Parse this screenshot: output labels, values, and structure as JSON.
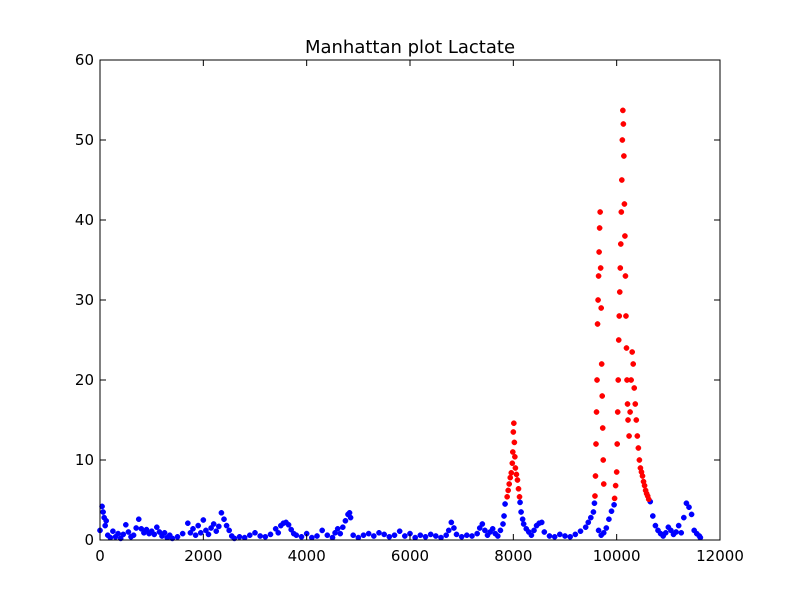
{
  "chart_data": {
    "type": "scatter",
    "title": "Manhattan plot Lactate",
    "xlabel": "",
    "ylabel": "",
    "xlim": [
      0,
      12000
    ],
    "ylim": [
      0,
      60
    ],
    "x_ticks": [
      "0",
      "2000",
      "4000",
      "6000",
      "8000",
      "10000",
      "12000"
    ],
    "y_ticks": [
      "0",
      "10",
      "20",
      "30",
      "40",
      "50",
      "60"
    ],
    "grid": false,
    "legend": "none",
    "threshold": 5,
    "colors": {
      "below_threshold": "#0000ff",
      "above_threshold": "#ff0000"
    },
    "series": [
      {
        "points": [
          [
            0,
            1.2
          ],
          [
            40,
            4.2
          ],
          [
            60,
            3.5
          ],
          [
            80,
            2.8
          ],
          [
            100,
            1.8
          ],
          [
            120,
            2.4
          ],
          [
            150,
            0.6
          ],
          [
            200,
            0.3
          ],
          [
            250,
            1.1
          ],
          [
            300,
            0.4
          ],
          [
            350,
            0.8
          ],
          [
            400,
            0.2
          ],
          [
            450,
            0.7
          ],
          [
            500,
            1.9
          ],
          [
            550,
            1.0
          ],
          [
            600,
            0.4
          ],
          [
            650,
            0.6
          ],
          [
            700,
            1.5
          ],
          [
            750,
            2.6
          ],
          [
            800,
            1.4
          ],
          [
            850,
            0.9
          ],
          [
            900,
            1.3
          ],
          [
            950,
            0.8
          ],
          [
            1000,
            1.1
          ],
          [
            1050,
            0.7
          ],
          [
            1100,
            1.6
          ],
          [
            1150,
            1.0
          ],
          [
            1200,
            0.5
          ],
          [
            1250,
            0.9
          ],
          [
            1300,
            0.3
          ],
          [
            1350,
            0.6
          ],
          [
            1400,
            0.2
          ],
          [
            1500,
            0.4
          ],
          [
            1600,
            0.8
          ],
          [
            1700,
            2.1
          ],
          [
            1750,
            0.9
          ],
          [
            1800,
            1.4
          ],
          [
            1850,
            0.6
          ],
          [
            1900,
            1.8
          ],
          [
            1950,
            0.9
          ],
          [
            2000,
            2.5
          ],
          [
            2050,
            1.2
          ],
          [
            2100,
            0.7
          ],
          [
            2150,
            1.5
          ],
          [
            2200,
            2.0
          ],
          [
            2250,
            1.1
          ],
          [
            2300,
            1.7
          ],
          [
            2350,
            3.4
          ],
          [
            2400,
            2.6
          ],
          [
            2450,
            1.8
          ],
          [
            2500,
            1.2
          ],
          [
            2550,
            0.5
          ],
          [
            2600,
            0.2
          ],
          [
            2700,
            0.4
          ],
          [
            2800,
            0.3
          ],
          [
            2900,
            0.6
          ],
          [
            3000,
            0.9
          ],
          [
            3100,
            0.5
          ],
          [
            3200,
            0.4
          ],
          [
            3300,
            0.7
          ],
          [
            3400,
            1.4
          ],
          [
            3450,
            0.9
          ],
          [
            3500,
            1.8
          ],
          [
            3550,
            2.1
          ],
          [
            3600,
            2.2
          ],
          [
            3650,
            1.9
          ],
          [
            3700,
            1.3
          ],
          [
            3750,
            0.8
          ],
          [
            3800,
            0.6
          ],
          [
            3900,
            0.4
          ],
          [
            4000,
            0.8
          ],
          [
            4100,
            0.3
          ],
          [
            4200,
            0.5
          ],
          [
            4300,
            1.2
          ],
          [
            4400,
            0.6
          ],
          [
            4500,
            0.3
          ],
          [
            4550,
            0.9
          ],
          [
            4600,
            1.4
          ],
          [
            4650,
            0.8
          ],
          [
            4700,
            1.6
          ],
          [
            4750,
            2.4
          ],
          [
            4800,
            3.2
          ],
          [
            4830,
            3.4
          ],
          [
            4850,
            2.8
          ],
          [
            4900,
            0.6
          ],
          [
            5000,
            0.3
          ],
          [
            5100,
            0.6
          ],
          [
            5200,
            0.8
          ],
          [
            5300,
            0.5
          ],
          [
            5400,
            0.9
          ],
          [
            5500,
            0.7
          ],
          [
            5600,
            0.4
          ],
          [
            5700,
            0.6
          ],
          [
            5800,
            1.1
          ],
          [
            5900,
            0.5
          ],
          [
            6000,
            0.8
          ],
          [
            6100,
            0.3
          ],
          [
            6200,
            0.6
          ],
          [
            6300,
            0.4
          ],
          [
            6400,
            0.7
          ],
          [
            6500,
            0.5
          ],
          [
            6600,
            0.3
          ],
          [
            6700,
            0.6
          ],
          [
            6750,
            1.2
          ],
          [
            6800,
            2.2
          ],
          [
            6850,
            1.5
          ],
          [
            6900,
            0.7
          ],
          [
            7000,
            0.4
          ],
          [
            7100,
            0.6
          ],
          [
            7200,
            0.5
          ],
          [
            7300,
            0.8
          ],
          [
            7350,
            1.5
          ],
          [
            7400,
            2.0
          ],
          [
            7450,
            1.2
          ],
          [
            7500,
            0.6
          ],
          [
            7550,
            1.0
          ],
          [
            7600,
            1.4
          ],
          [
            7650,
            0.8
          ],
          [
            7700,
            0.5
          ],
          [
            7750,
            1.2
          ],
          [
            7800,
            2.0
          ],
          [
            7820,
            3.0
          ],
          [
            7840,
            4.5
          ],
          [
            8130,
            4.7
          ],
          [
            8150,
            3.5
          ],
          [
            8180,
            2.6
          ],
          [
            8200,
            2.0
          ],
          [
            8250,
            1.4
          ],
          [
            8300,
            1.0
          ],
          [
            8350,
            0.6
          ],
          [
            8400,
            1.2
          ],
          [
            8450,
            1.8
          ],
          [
            8500,
            2.1
          ],
          [
            8550,
            2.2
          ],
          [
            8600,
            1.0
          ],
          [
            8700,
            0.5
          ],
          [
            8800,
            0.4
          ],
          [
            8900,
            0.7
          ],
          [
            9000,
            0.5
          ],
          [
            9100,
            0.4
          ],
          [
            9200,
            0.7
          ],
          [
            9300,
            1.1
          ],
          [
            9400,
            1.6
          ],
          [
            9450,
            2.2
          ],
          [
            9500,
            2.8
          ],
          [
            9550,
            3.5
          ],
          [
            9570,
            4.6
          ],
          [
            9650,
            1.2
          ],
          [
            9700,
            0.6
          ],
          [
            9750,
            0.9
          ],
          [
            9800,
            1.5
          ],
          [
            9850,
            2.6
          ],
          [
            9900,
            3.6
          ],
          [
            9950,
            4.4
          ],
          [
            10650,
            4.8
          ],
          [
            10700,
            3.0
          ],
          [
            10750,
            1.8
          ],
          [
            10800,
            1.2
          ],
          [
            10850,
            0.8
          ],
          [
            10900,
            0.5
          ],
          [
            10950,
            0.9
          ],
          [
            11000,
            1.6
          ],
          [
            11050,
            1.2
          ],
          [
            11100,
            0.7
          ],
          [
            11150,
            1.0
          ],
          [
            11200,
            1.8
          ],
          [
            11250,
            0.9
          ],
          [
            11300,
            2.8
          ],
          [
            11350,
            4.6
          ],
          [
            11400,
            4.1
          ],
          [
            11450,
            3.2
          ],
          [
            11500,
            1.2
          ],
          [
            11550,
            0.8
          ],
          [
            11600,
            0.5
          ],
          [
            11620,
            0.3
          ],
          [
            7880,
            5.4
          ],
          [
            7900,
            6.2
          ],
          [
            7920,
            7.0
          ],
          [
            7940,
            7.8
          ],
          [
            7960,
            8.4
          ],
          [
            7980,
            9.6
          ],
          [
            7990,
            11.0
          ],
          [
            8000,
            13.5
          ],
          [
            8010,
            14.6
          ],
          [
            8020,
            12.2
          ],
          [
            8030,
            10.4
          ],
          [
            8040,
            9.0
          ],
          [
            8060,
            8.2
          ],
          [
            8080,
            7.5
          ],
          [
            8100,
            6.4
          ],
          [
            8120,
            5.4
          ],
          [
            9580,
            5.5
          ],
          [
            9590,
            8.0
          ],
          [
            9600,
            12.0
          ],
          [
            9610,
            16.0
          ],
          [
            9620,
            20.0
          ],
          [
            9630,
            27.0
          ],
          [
            9640,
            30.0
          ],
          [
            9650,
            33.0
          ],
          [
            9660,
            36.0
          ],
          [
            9670,
            39.0
          ],
          [
            9680,
            41.0
          ],
          [
            9690,
            34.0
          ],
          [
            9700,
            29.0
          ],
          [
            9710,
            22.0
          ],
          [
            9720,
            18.0
          ],
          [
            9730,
            14.0
          ],
          [
            9740,
            10.0
          ],
          [
            9750,
            7.0
          ],
          [
            9960,
            5.2
          ],
          [
            9980,
            6.8
          ],
          [
            10000,
            8.5
          ],
          [
            10010,
            12.0
          ],
          [
            10020,
            16.0
          ],
          [
            10030,
            20.0
          ],
          [
            10040,
            25.0
          ],
          [
            10050,
            28.0
          ],
          [
            10060,
            31.0
          ],
          [
            10070,
            34.0
          ],
          [
            10080,
            37.0
          ],
          [
            10090,
            41.0
          ],
          [
            10100,
            45.0
          ],
          [
            10110,
            50.0
          ],
          [
            10120,
            53.7
          ],
          [
            10130,
            52.0
          ],
          [
            10140,
            48.0
          ],
          [
            10150,
            42.0
          ],
          [
            10160,
            38.0
          ],
          [
            10170,
            33.0
          ],
          [
            10180,
            28.0
          ],
          [
            10190,
            24.0
          ],
          [
            10200,
            20.0
          ],
          [
            10210,
            17.0
          ],
          [
            10220,
            15.0
          ],
          [
            10240,
            13.0
          ],
          [
            10260,
            16.0
          ],
          [
            10280,
            20.0
          ],
          [
            10300,
            23.5
          ],
          [
            10320,
            22.0
          ],
          [
            10340,
            19.0
          ],
          [
            10360,
            17.0
          ],
          [
            10380,
            15.0
          ],
          [
            10400,
            13.0
          ],
          [
            10420,
            11.5
          ],
          [
            10440,
            10.0
          ],
          [
            10460,
            9.0
          ],
          [
            10480,
            8.5
          ],
          [
            10500,
            8.0
          ],
          [
            10520,
            7.3
          ],
          [
            10540,
            6.8
          ],
          [
            10560,
            6.2
          ],
          [
            10580,
            5.8
          ],
          [
            10600,
            5.5
          ],
          [
            10620,
            5.1
          ]
        ]
      }
    ]
  }
}
